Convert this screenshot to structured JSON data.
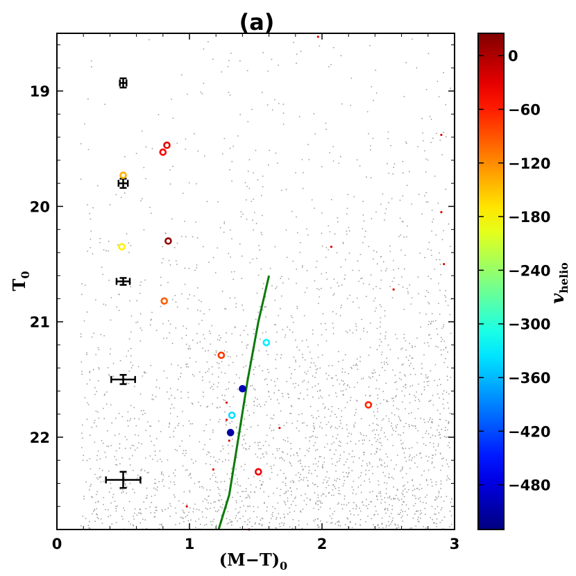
{
  "chart_data": {
    "type": "scatter",
    "title": "(a)",
    "xlabel": {
      "main": "(M−T)",
      "sub": "0"
    },
    "ylabel": {
      "main": "T",
      "sub": "0"
    },
    "xlim": [
      0,
      3
    ],
    "ylim": [
      22.8,
      18.5
    ],
    "y_inverted": true,
    "xticks": [
      0,
      1,
      2,
      3
    ],
    "xtick_labels": [
      "0",
      "1",
      "2",
      "3"
    ],
    "yticks": [
      19,
      20,
      21,
      22
    ],
    "ytick_labels": [
      "19",
      "20",
      "21",
      "22"
    ],
    "grid": false,
    "background_field": {
      "color": "#9a9a9a",
      "description_for_render": "dense field-star points, concentrated toward lower right"
    },
    "colorbar": {
      "label": {
        "main": "v",
        "sub": "helio"
      },
      "vmin": -530,
      "vmax": 25,
      "ticks": [
        0,
        -60,
        -120,
        -180,
        -240,
        -300,
        -360,
        -420,
        -480
      ],
      "tick_labels": [
        "0",
        "−60",
        "−120",
        "−180",
        "−240",
        "−300",
        "−360",
        "−420",
        "−480"
      ],
      "colormap": "jet"
    },
    "isochrone": {
      "color": "#0a7a0a",
      "points": [
        [
          1.6,
          20.6
        ],
        [
          1.52,
          21.0
        ],
        [
          1.44,
          21.5
        ],
        [
          1.37,
          22.0
        ],
        [
          1.3,
          22.5
        ],
        [
          1.22,
          22.8
        ]
      ]
    },
    "error_bars": [
      {
        "x": 0.5,
        "y": 18.93,
        "xerr": 0.025,
        "yerr": 0.04
      },
      {
        "x": 0.5,
        "y": 19.8,
        "xerr": 0.035,
        "yerr": 0.04
      },
      {
        "x": 0.5,
        "y": 20.65,
        "xerr": 0.05,
        "yerr": 0.03
      },
      {
        "x": 0.5,
        "y": 21.5,
        "xerr": 0.09,
        "yerr": 0.04
      },
      {
        "x": 0.5,
        "y": 22.37,
        "xerr": 0.13,
        "yerr": 0.07
      }
    ],
    "members": [
      {
        "x": 0.83,
        "y": 19.47,
        "v": -30
      },
      {
        "x": 0.8,
        "y": 19.53,
        "v": -45
      },
      {
        "x": 0.5,
        "y": 19.73,
        "v": -140
      },
      {
        "x": 0.49,
        "y": 20.35,
        "v": -175
      },
      {
        "x": 0.84,
        "y": 20.3,
        "v": 15
      },
      {
        "x": 0.81,
        "y": 20.82,
        "v": -95
      },
      {
        "x": 1.58,
        "y": 21.18,
        "v": -330
      },
      {
        "x": 1.24,
        "y": 21.29,
        "v": -75
      },
      {
        "x": 1.4,
        "y": 21.58,
        "v": -500
      },
      {
        "x": 2.35,
        "y": 21.72,
        "v": -65
      },
      {
        "x": 1.32,
        "y": 21.81,
        "v": -340
      },
      {
        "x": 1.31,
        "y": 21.96,
        "v": -510
      },
      {
        "x": 1.52,
        "y": 22.3,
        "v": -40
      }
    ],
    "small_red_points": [
      [
        1.97,
        18.53
      ],
      [
        2.9,
        19.38
      ],
      [
        2.9,
        20.05
      ],
      [
        2.07,
        20.35
      ],
      [
        2.92,
        20.5
      ],
      [
        2.54,
        20.72
      ],
      [
        1.28,
        21.7
      ],
      [
        1.28,
        21.85
      ],
      [
        1.3,
        22.03
      ],
      [
        1.68,
        21.92
      ],
      [
        1.18,
        22.28
      ],
      [
        0.98,
        22.6
      ],
      [
        1.45,
        22.8
      ]
    ]
  }
}
